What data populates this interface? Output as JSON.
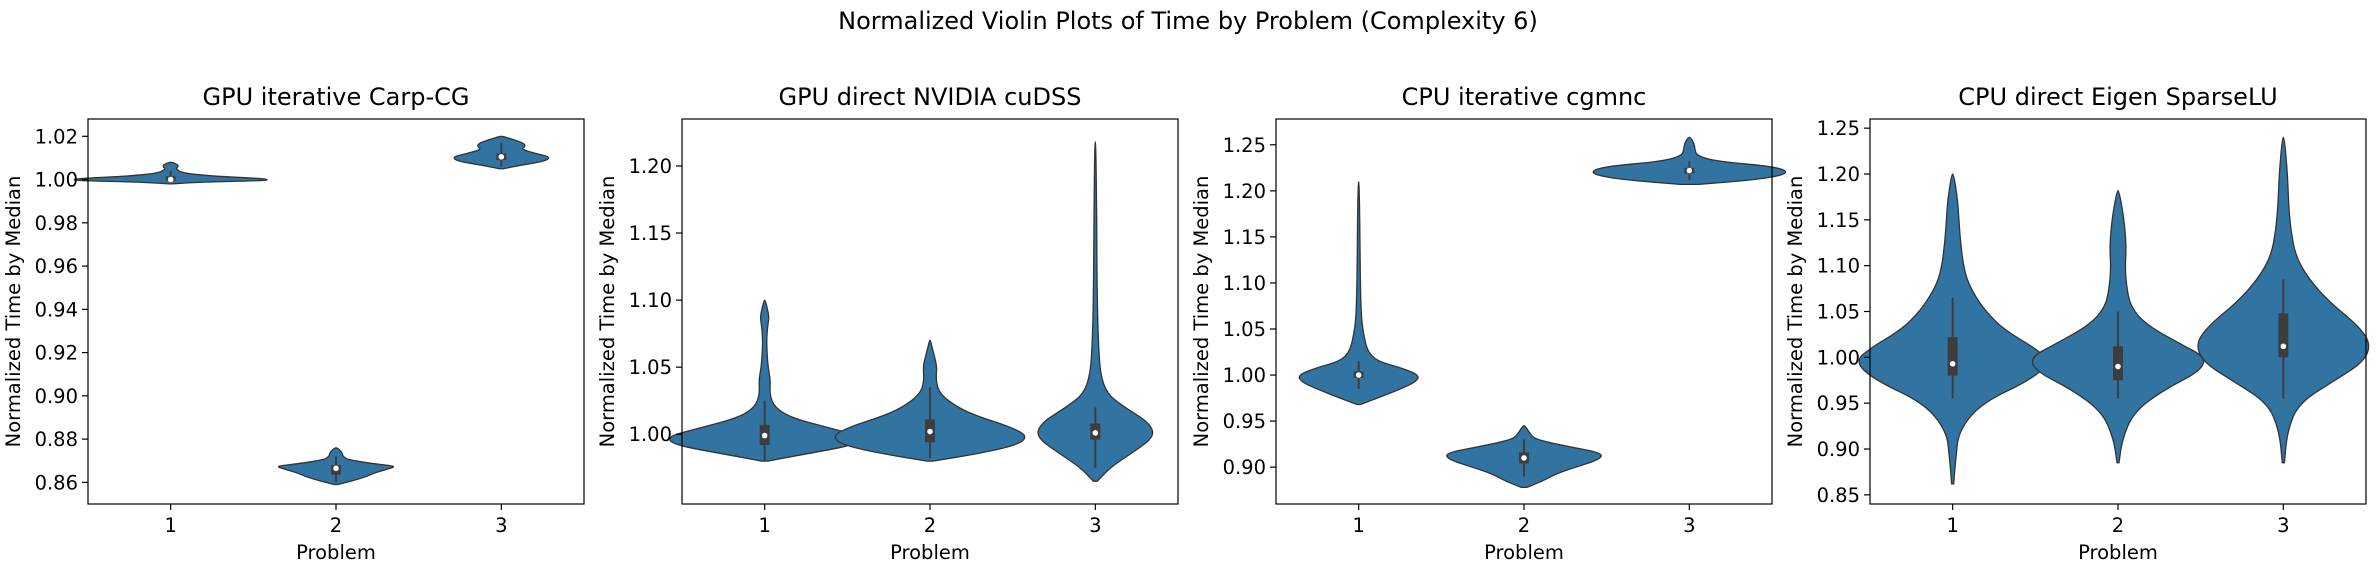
{
  "figure": {
    "title": "Normalized Violin Plots of Time by Problem (Complexity 6)",
    "violin_color": "#3274a1",
    "edge_color": "#333333",
    "box_color": "#3d3d3d",
    "median_color": "#ffffff"
  },
  "chart_data": [
    {
      "type": "violin",
      "title": "GPU iterative Carp-CG",
      "xlabel": "Problem",
      "ylabel": "Normalized Time by Median",
      "categories": [
        "1",
        "2",
        "3"
      ],
      "ylim": [
        0.85,
        1.028
      ],
      "yticks": [
        0.86,
        0.88,
        0.9,
        0.92,
        0.94,
        0.96,
        0.98,
        1.0,
        1.02
      ],
      "ytick_labels": [
        "0.86",
        "0.88",
        "0.90",
        "0.92",
        "0.94",
        "0.96",
        "0.98",
        "1.00",
        "1.02"
      ],
      "violins": [
        {
          "min": 0.998,
          "max": 1.008,
          "q1": 0.9995,
          "median": 1.0,
          "q3": 1.0015,
          "whisker_low": 0.998,
          "whisker_high": 1.004,
          "density": [
            [
              0.998,
              0.02
            ],
            [
              0.9988,
              0.3
            ],
            [
              0.9995,
              0.95
            ],
            [
              1.0,
              1.0
            ],
            [
              1.0006,
              0.9
            ],
            [
              1.0015,
              0.45
            ],
            [
              1.003,
              0.12
            ],
            [
              1.005,
              0.05
            ],
            [
              1.006,
              0.08
            ],
            [
              1.007,
              0.07
            ],
            [
              1.008,
              0.01
            ]
          ]
        },
        {
          "min": 0.859,
          "max": 0.876,
          "q1": 0.8635,
          "median": 0.8665,
          "q3": 0.868,
          "whisker_low": 0.86,
          "whisker_high": 0.872,
          "density": [
            [
              0.859,
              0.02
            ],
            [
              0.8605,
              0.15
            ],
            [
              0.8625,
              0.3
            ],
            [
              0.8645,
              0.4
            ],
            [
              0.866,
              0.52
            ],
            [
              0.8675,
              0.62
            ],
            [
              0.8685,
              0.4
            ],
            [
              0.8705,
              0.12
            ],
            [
              0.872,
              0.07
            ],
            [
              0.874,
              0.06
            ],
            [
              0.876,
              0.01
            ]
          ]
        },
        {
          "min": 1.005,
          "max": 1.02,
          "q1": 1.009,
          "median": 1.0105,
          "q3": 1.012,
          "whisker_low": 1.006,
          "whisker_high": 1.017,
          "density": [
            [
              1.005,
              0.02
            ],
            [
              1.0065,
              0.18
            ],
            [
              1.0085,
              0.45
            ],
            [
              1.0105,
              0.5
            ],
            [
              1.012,
              0.35
            ],
            [
              1.014,
              0.2
            ],
            [
              1.0155,
              0.25
            ],
            [
              1.017,
              0.22
            ],
            [
              1.0185,
              0.12
            ],
            [
              1.02,
              0.01
            ]
          ]
        }
      ]
    },
    {
      "type": "violin",
      "title": "GPU direct NVIDIA cuDSS",
      "xlabel": "Problem",
      "ylabel": "Normalized Time by Median",
      "categories": [
        "1",
        "2",
        "3"
      ],
      "ylim": [
        0.948,
        1.235
      ],
      "yticks": [
        1.0,
        1.05,
        1.1,
        1.15,
        1.2
      ],
      "ytick_labels": [
        "1.00",
        "1.05",
        "1.10",
        "1.15",
        "1.20"
      ],
      "violins": [
        {
          "min": 0.98,
          "max": 1.1,
          "q1": 0.992,
          "median": 0.999,
          "q3": 1.007,
          "whisker_low": 0.98,
          "whisker_high": 1.025,
          "density": [
            [
              0.98,
              0.03
            ],
            [
              0.985,
              0.4
            ],
            [
              0.992,
              0.92
            ],
            [
              0.998,
              1.0
            ],
            [
              1.004,
              0.7
            ],
            [
              1.012,
              0.28
            ],
            [
              1.02,
              0.1
            ],
            [
              1.03,
              0.05
            ],
            [
              1.04,
              0.06
            ],
            [
              1.05,
              0.035
            ],
            [
              1.06,
              0.025
            ],
            [
              1.07,
              0.02
            ],
            [
              1.08,
              0.03
            ],
            [
              1.087,
              0.045
            ],
            [
              1.093,
              0.03
            ],
            [
              1.1,
              0.005
            ]
          ]
        },
        {
          "min": 0.98,
          "max": 1.07,
          "q1": 0.994,
          "median": 1.002,
          "q3": 1.011,
          "whisker_low": 0.982,
          "whisker_high": 1.035,
          "density": [
            [
              0.98,
              0.03
            ],
            [
              0.985,
              0.45
            ],
            [
              0.992,
              0.9
            ],
            [
              0.999,
              1.0
            ],
            [
              1.006,
              0.8
            ],
            [
              1.013,
              0.5
            ],
            [
              1.02,
              0.28
            ],
            [
              1.03,
              0.1
            ],
            [
              1.04,
              0.06
            ],
            [
              1.05,
              0.07
            ],
            [
              1.057,
              0.05
            ],
            [
              1.065,
              0.02
            ],
            [
              1.07,
              0.005
            ]
          ]
        },
        {
          "min": 0.965,
          "max": 1.218,
          "q1": 0.996,
          "median": 1.001,
          "q3": 1.008,
          "whisker_low": 0.975,
          "whisker_high": 1.02,
          "density": [
            [
              0.965,
              0.02
            ],
            [
              0.975,
              0.15
            ],
            [
              0.985,
              0.35
            ],
            [
              0.995,
              0.55
            ],
            [
              1.002,
              0.6
            ],
            [
              1.01,
              0.52
            ],
            [
              1.02,
              0.3
            ],
            [
              1.03,
              0.12
            ],
            [
              1.045,
              0.05
            ],
            [
              1.07,
              0.03
            ],
            [
              1.1,
              0.02
            ],
            [
              1.14,
              0.015
            ],
            [
              1.18,
              0.012
            ],
            [
              1.218,
              0.004
            ]
          ]
        }
      ]
    },
    {
      "type": "violin",
      "title": "CPU iterative cgmnc",
      "xlabel": "Problem",
      "ylabel": "Normalized Time by Median",
      "categories": [
        "1",
        "2",
        "3"
      ],
      "ylim": [
        0.86,
        1.278
      ],
      "yticks": [
        0.9,
        0.95,
        1.0,
        1.05,
        1.1,
        1.15,
        1.2,
        1.25
      ],
      "ytick_labels": [
        "0.90",
        "0.95",
        "1.00",
        "1.05",
        "1.10",
        "1.15",
        "1.20",
        "1.25"
      ],
      "violins": [
        {
          "min": 0.968,
          "max": 1.21,
          "q1": 0.997,
          "median": 1.0,
          "q3": 1.004,
          "whisker_low": 0.985,
          "whisker_high": 1.015,
          "density": [
            [
              0.968,
              0.02
            ],
            [
              0.975,
              0.2
            ],
            [
              0.985,
              0.45
            ],
            [
              0.993,
              0.62
            ],
            [
              1.0,
              0.65
            ],
            [
              1.008,
              0.45
            ],
            [
              1.015,
              0.2
            ],
            [
              1.025,
              0.1
            ],
            [
              1.04,
              0.06
            ],
            [
              1.06,
              0.03
            ],
            [
              1.09,
              0.02
            ],
            [
              1.13,
              0.015
            ],
            [
              1.17,
              0.012
            ],
            [
              1.21,
              0.004
            ]
          ]
        },
        {
          "min": 0.878,
          "max": 0.945,
          "q1": 0.904,
          "median": 0.91,
          "q3": 0.916,
          "whisker_low": 0.89,
          "whisker_high": 0.93,
          "density": [
            [
              0.878,
              0.03
            ],
            [
              0.885,
              0.2
            ],
            [
              0.893,
              0.35
            ],
            [
              0.9,
              0.55
            ],
            [
              0.908,
              0.8
            ],
            [
              0.915,
              0.85
            ],
            [
              0.922,
              0.5
            ],
            [
              0.93,
              0.12
            ],
            [
              0.937,
              0.06
            ],
            [
              0.945,
              0.01
            ]
          ]
        },
        {
          "min": 1.207,
          "max": 1.258,
          "q1": 1.219,
          "median": 1.222,
          "q3": 1.225,
          "whisker_low": 1.212,
          "whisker_high": 1.232,
          "density": [
            [
              1.207,
              0.1
            ],
            [
              1.212,
              0.7
            ],
            [
              1.217,
              1.0
            ],
            [
              1.222,
              1.05
            ],
            [
              1.227,
              0.85
            ],
            [
              1.232,
              0.3
            ],
            [
              1.238,
              0.08
            ],
            [
              1.245,
              0.06
            ],
            [
              1.252,
              0.05
            ],
            [
              1.258,
              0.01
            ]
          ]
        }
      ]
    },
    {
      "type": "violin",
      "title": "CPU direct Eigen SparseLU",
      "xlabel": "Problem",
      "ylabel": "Normalized Time by Median",
      "categories": [
        "1",
        "2",
        "3"
      ],
      "ylim": [
        0.84,
        1.26
      ],
      "yticks": [
        0.85,
        0.9,
        0.95,
        1.0,
        1.05,
        1.1,
        1.15,
        1.2,
        1.25
      ],
      "ytick_labels": [
        "0.85",
        "0.90",
        "0.95",
        "1.00",
        "1.05",
        "1.10",
        "1.15",
        "1.20",
        "1.25"
      ],
      "violins": [
        {
          "min": 0.862,
          "max": 1.2,
          "q1": 0.98,
          "median": 0.993,
          "q3": 1.022,
          "whisker_low": 0.955,
          "whisker_high": 1.065,
          "density": [
            [
              0.862,
              0.01
            ],
            [
              0.89,
              0.03
            ],
            [
              0.92,
              0.06
            ],
            [
              0.95,
              0.28
            ],
            [
              0.975,
              0.75
            ],
            [
              0.995,
              0.95
            ],
            [
              1.01,
              0.8
            ],
            [
              1.03,
              0.5
            ],
            [
              1.05,
              0.32
            ],
            [
              1.07,
              0.2
            ],
            [
              1.09,
              0.12
            ],
            [
              1.12,
              0.08
            ],
            [
              1.15,
              0.06
            ],
            [
              1.17,
              0.05
            ],
            [
              1.2,
              0.01
            ]
          ]
        },
        {
          "min": 0.885,
          "max": 1.182,
          "q1": 0.975,
          "median": 0.99,
          "q3": 1.012,
          "whisker_low": 0.955,
          "whisker_high": 1.05,
          "density": [
            [
              0.885,
              0.01
            ],
            [
              0.91,
              0.04
            ],
            [
              0.94,
              0.15
            ],
            [
              0.965,
              0.45
            ],
            [
              0.985,
              0.8
            ],
            [
              1.0,
              0.85
            ],
            [
              1.015,
              0.6
            ],
            [
              1.035,
              0.28
            ],
            [
              1.055,
              0.12
            ],
            [
              1.08,
              0.08
            ],
            [
              1.1,
              0.07
            ],
            [
              1.12,
              0.08
            ],
            [
              1.15,
              0.06
            ],
            [
              1.182,
              0.01
            ]
          ]
        },
        {
          "min": 0.885,
          "max": 1.24,
          "q1": 1.0,
          "median": 1.012,
          "q3": 1.048,
          "whisker_low": 0.955,
          "whisker_high": 1.085,
          "density": [
            [
              0.885,
              0.01
            ],
            [
              0.92,
              0.04
            ],
            [
              0.95,
              0.15
            ],
            [
              0.975,
              0.5
            ],
            [
              0.995,
              0.78
            ],
            [
              1.015,
              0.85
            ],
            [
              1.035,
              0.72
            ],
            [
              1.06,
              0.45
            ],
            [
              1.085,
              0.25
            ],
            [
              1.11,
              0.12
            ],
            [
              1.14,
              0.07
            ],
            [
              1.17,
              0.05
            ],
            [
              1.2,
              0.04
            ],
            [
              1.24,
              0.01
            ]
          ]
        }
      ]
    }
  ]
}
